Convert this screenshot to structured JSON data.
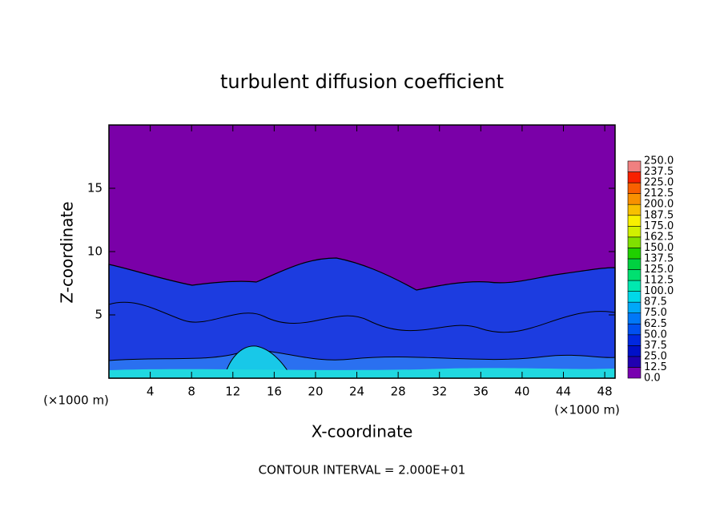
{
  "chart_data": {
    "type": "contour",
    "title": "turbulent diffusion coefficient",
    "x_label": "X-coordinate",
    "y_label": "Z-coordinate",
    "x_unit_left": "(×1000 m)",
    "x_unit_right": "(×1000 m)",
    "footnote": "CONTOUR INTERVAL = 2.000E+01",
    "xlim": [
      0,
      49
    ],
    "xticks": [
      4,
      8,
      12,
      16,
      20,
      24,
      28,
      32,
      36,
      40,
      44,
      48
    ],
    "ylim": [
      0,
      20
    ],
    "yticks": [
      5,
      10,
      15
    ],
    "colorbar": {
      "levels": [
        {
          "value": 0,
          "label": "0.0"
        },
        {
          "value": 12.5,
          "label": "12.5"
        },
        {
          "value": 25,
          "label": "25.0"
        },
        {
          "value": 37.5,
          "label": "37.5"
        },
        {
          "value": 50,
          "label": "50.0"
        },
        {
          "value": 62.5,
          "label": "62.5"
        },
        {
          "value": 75,
          "label": "75.0"
        },
        {
          "value": 87.5,
          "label": "87.5"
        },
        {
          "value": 100,
          "label": "100.0"
        },
        {
          "value": 112.5,
          "label": "112.5"
        },
        {
          "value": 125,
          "label": "125.0"
        },
        {
          "value": 137.5,
          "label": "137.5"
        },
        {
          "value": 150,
          "label": "150.0"
        },
        {
          "value": 162.5,
          "label": "162.5"
        },
        {
          "value": 175,
          "label": "175.0"
        },
        {
          "value": 187.5,
          "label": "187.5"
        },
        {
          "value": 200,
          "label": "200.0"
        },
        {
          "value": 212.5,
          "label": "212.5"
        },
        {
          "value": 225,
          "label": "225.0"
        },
        {
          "value": 237.5,
          "label": "237.5"
        },
        {
          "value": 250,
          "label": "250.0"
        }
      ],
      "colors": [
        "#7800b0",
        "#2000b0",
        "#0010c8",
        "#0028e0",
        "#0050f0",
        "#0078f8",
        "#00a8f8",
        "#00d8e8",
        "#00e8b0",
        "#00e070",
        "#00d040",
        "#20d000",
        "#80e000",
        "#d0f000",
        "#f8f000",
        "#f8c000",
        "#f89000",
        "#f86000",
        "#f82000",
        "#f08080"
      ]
    }
  }
}
